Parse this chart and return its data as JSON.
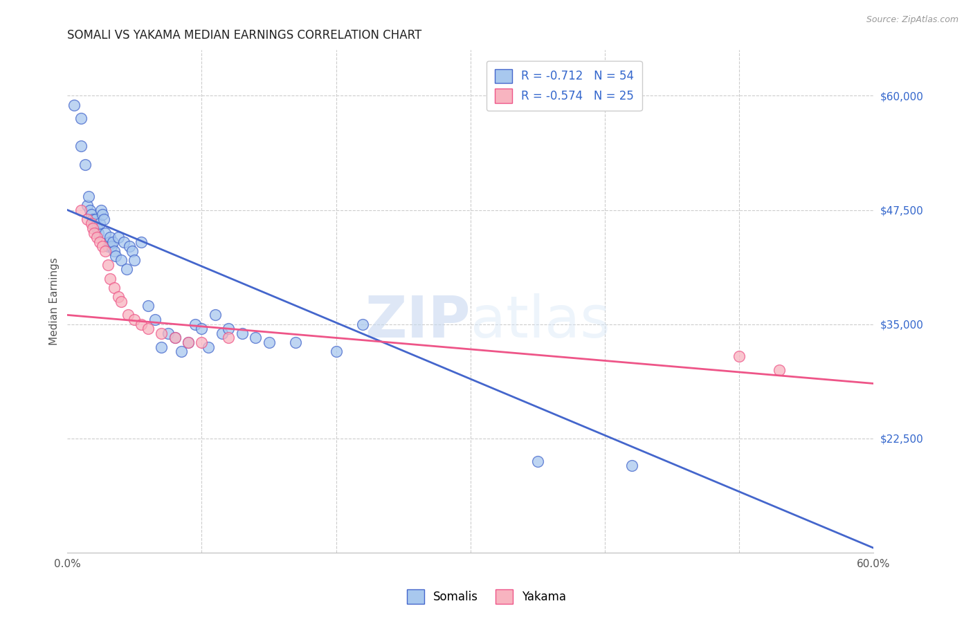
{
  "title": "SOMALI VS YAKAMA MEDIAN EARNINGS CORRELATION CHART",
  "source": "Source: ZipAtlas.com",
  "ylabel": "Median Earnings",
  "xlim": [
    0.0,
    0.6
  ],
  "ylim": [
    10000,
    65000
  ],
  "xticks": [
    0.0,
    0.1,
    0.2,
    0.3,
    0.4,
    0.5,
    0.6
  ],
  "xticklabels": [
    "0.0%",
    "",
    "",
    "",
    "",
    "",
    "60.0%"
  ],
  "yticks_right": [
    22500,
    35000,
    47500,
    60000
  ],
  "ytick_labels_right": [
    "$22,500",
    "$35,000",
    "$47,500",
    "$60,000"
  ],
  "background_color": "#ffffff",
  "grid_color": "#cccccc",
  "watermark_zip": "ZIP",
  "watermark_atlas": "atlas",
  "legend_labels": [
    "Somalis",
    "Yakama"
  ],
  "somali_R": -0.712,
  "somali_N": 54,
  "yakama_R": -0.574,
  "yakama_N": 25,
  "somali_color": "#A8C8EE",
  "yakama_color": "#F8B4C0",
  "somali_line_color": "#4466CC",
  "yakama_line_color": "#EE5588",
  "somali_x": [
    0.005,
    0.01,
    0.01,
    0.013,
    0.015,
    0.016,
    0.017,
    0.018,
    0.019,
    0.02,
    0.021,
    0.022,
    0.023,
    0.024,
    0.025,
    0.026,
    0.027,
    0.028,
    0.03,
    0.031,
    0.032,
    0.033,
    0.034,
    0.035,
    0.036,
    0.038,
    0.04,
    0.042,
    0.044,
    0.046,
    0.048,
    0.05,
    0.055,
    0.06,
    0.065,
    0.07,
    0.075,
    0.08,
    0.085,
    0.09,
    0.095,
    0.1,
    0.105,
    0.11,
    0.115,
    0.12,
    0.13,
    0.14,
    0.15,
    0.17,
    0.2,
    0.22,
    0.35,
    0.42
  ],
  "somali_y": [
    59000,
    57500,
    54500,
    52500,
    48000,
    49000,
    47500,
    47000,
    46500,
    46000,
    46500,
    45500,
    45000,
    46000,
    47500,
    47000,
    46500,
    45000,
    43500,
    44000,
    44500,
    43500,
    44000,
    43000,
    42500,
    44500,
    42000,
    44000,
    41000,
    43500,
    43000,
    42000,
    44000,
    37000,
    35500,
    32500,
    34000,
    33500,
    32000,
    33000,
    35000,
    34500,
    32500,
    36000,
    34000,
    34500,
    34000,
    33500,
    33000,
    33000,
    32000,
    35000,
    20000,
    19500
  ],
  "yakama_x": [
    0.01,
    0.015,
    0.018,
    0.019,
    0.02,
    0.022,
    0.024,
    0.026,
    0.028,
    0.03,
    0.032,
    0.035,
    0.038,
    0.04,
    0.045,
    0.05,
    0.055,
    0.06,
    0.07,
    0.08,
    0.09,
    0.1,
    0.12,
    0.5,
    0.53
  ],
  "yakama_y": [
    47500,
    46500,
    46000,
    45500,
    45000,
    44500,
    44000,
    43500,
    43000,
    41500,
    40000,
    39000,
    38000,
    37500,
    36000,
    35500,
    35000,
    34500,
    34000,
    33500,
    33000,
    33000,
    33500,
    31500,
    30000
  ],
  "somali_trend_x0": 0.0,
  "somali_trend_y0": 47500,
  "somali_trend_x1": 0.6,
  "somali_trend_y1": 10500,
  "yakama_trend_x0": 0.0,
  "yakama_trend_y0": 36000,
  "yakama_trend_x1": 0.6,
  "yakama_trend_y1": 28500
}
